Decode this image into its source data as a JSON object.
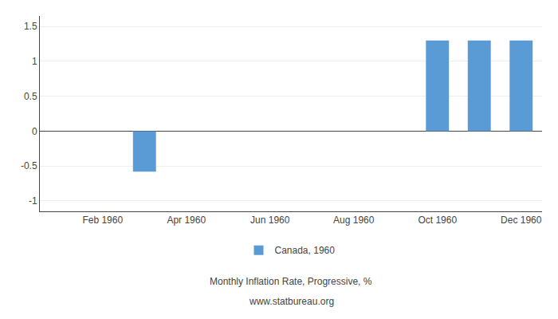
{
  "chart_data": {
    "type": "bar",
    "subtitle": "Monthly Inflation Rate, Progressive, %",
    "annotations": [
      "www.statbureau.org"
    ],
    "categories": [
      null,
      "Feb 1960",
      null,
      "Apr 1960",
      null,
      "Jun 1960",
      null,
      "Aug 1960",
      null,
      "Oct 1960",
      null,
      "Dec 1960"
    ],
    "series": [
      {
        "name": "Canada, 1960",
        "color": "#5B9BD5",
        "values": [
          null,
          null,
          -0.58,
          null,
          null,
          null,
          null,
          null,
          null,
          1.3,
          1.3,
          1.3
        ]
      }
    ],
    "ylim": [
      -1.15,
      1.65
    ],
    "yticks": [
      -1,
      -0.5,
      0,
      0.5,
      1,
      1.5
    ],
    "grid": true
  }
}
